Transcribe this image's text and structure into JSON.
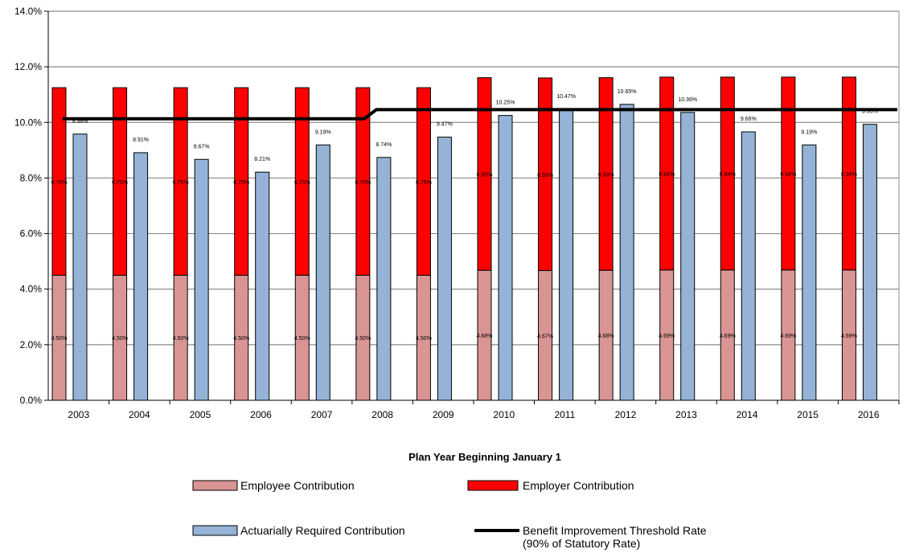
{
  "chart_data": {
    "type": "bar",
    "title": "",
    "xlabel": "Plan Year Beginning January 1",
    "ylabel": "",
    "ylim": [
      0,
      14
    ],
    "yticks": [
      "0.0%",
      "2.0%",
      "4.0%",
      "6.0%",
      "8.0%",
      "10.0%",
      "12.0%",
      "14.0%"
    ],
    "grid": "horizontal",
    "legend_position": "bottom",
    "categories": [
      "2003",
      "2004",
      "2005",
      "2006",
      "2007",
      "2008",
      "2009",
      "2010",
      "2011",
      "2012",
      "2013",
      "2014",
      "2015",
      "2016"
    ],
    "series": [
      {
        "name": "Employee Contribution",
        "kind": "stacked-bar",
        "color": "#d99594",
        "values": [
          4.5,
          4.5,
          4.5,
          4.5,
          4.5,
          4.5,
          4.5,
          4.68,
          4.67,
          4.68,
          4.69,
          4.69,
          4.69,
          4.69
        ],
        "labels": [
          "4.50%",
          "4.50%",
          "4.50%",
          "4.50%",
          "4.50%",
          "4.50%",
          "4.50%",
          "4.68%",
          "4.67%",
          "4.68%",
          "4.69%",
          "4.69%",
          "4.69%",
          "4.69%"
        ]
      },
      {
        "name": "Employer Contribution",
        "kind": "stacked-bar",
        "color": "#ff0000",
        "values": [
          6.75,
          6.75,
          6.75,
          6.75,
          6.75,
          6.75,
          6.75,
          6.93,
          6.93,
          6.93,
          6.94,
          6.94,
          6.94,
          6.94
        ],
        "labels": [
          "6.75%",
          "6.75%",
          "6.75%",
          "6.75%",
          "6.75%",
          "6.75%",
          "6.75%",
          "6.93%",
          "6.93%",
          "6.93%",
          "6.94%",
          "6.94%",
          "6.94%",
          "6.94%"
        ]
      },
      {
        "name": "Actuarially Required Contribution",
        "kind": "bar",
        "color": "#95b3d7",
        "values": [
          9.58,
          8.91,
          8.67,
          8.21,
          9.19,
          8.74,
          9.47,
          10.25,
          10.47,
          10.65,
          10.36,
          9.66,
          9.19,
          9.93
        ],
        "labels": [
          "9.58%",
          "8.91%",
          "8.67%",
          "8.21%",
          "9.19%",
          "8.74%",
          "9.47%",
          "10.25%",
          "10.47%",
          "10.65%",
          "10.36%",
          "9.66%",
          "9.19%",
          "9.93%"
        ]
      },
      {
        "name": "Benefit Improvement Threshold Rate",
        "name_line2": "(90% of Statutory Rate)",
        "kind": "step-line",
        "color": "#000000",
        "values": [
          10.13,
          10.13,
          10.13,
          10.13,
          10.13,
          10.46,
          10.46,
          10.46,
          10.46,
          10.46,
          10.46,
          10.46,
          10.46,
          10.46
        ]
      }
    ]
  }
}
